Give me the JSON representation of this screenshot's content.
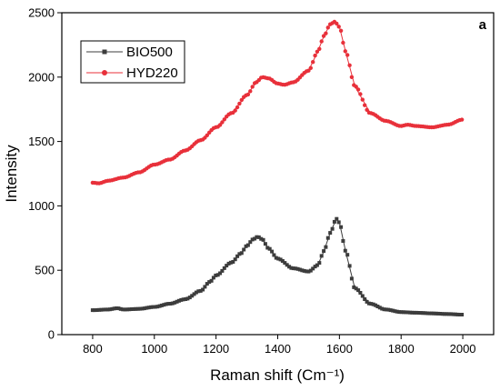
{
  "chart_data": {
    "type": "line",
    "panel_label": "a",
    "xlabel": "Raman shift (Cm⁻¹)",
    "ylabel": "Intensity",
    "xlim": [
      700,
      2100
    ],
    "ylim": [
      0,
      2500
    ],
    "xticks": [
      800,
      1000,
      1200,
      1400,
      1600,
      1800,
      2000
    ],
    "yticks": [
      0,
      500,
      1000,
      1500,
      2000,
      2500
    ],
    "legend_position": "top-left",
    "grid": false,
    "series": [
      {
        "name": "BIO500",
        "color": "#3c3c3c",
        "marker": "square",
        "x": [
          800,
          850,
          880,
          900,
          950,
          1000,
          1050,
          1100,
          1150,
          1180,
          1200,
          1250,
          1280,
          1300,
          1320,
          1335,
          1350,
          1370,
          1400,
          1450,
          1500,
          1530,
          1550,
          1570,
          1590,
          1600,
          1620,
          1650,
          1700,
          1750,
          1800,
          1850,
          1900,
          1950,
          2000
        ],
        "y": [
          190,
          195,
          205,
          195,
          200,
          215,
          240,
          275,
          340,
          410,
          460,
          560,
          630,
          690,
          740,
          760,
          740,
          670,
          590,
          515,
          490,
          540,
          650,
          790,
          900,
          870,
          650,
          360,
          240,
          195,
          175,
          170,
          165,
          160,
          155
        ]
      },
      {
        "name": "HYD220",
        "color": "#e8303a",
        "marker": "circle",
        "x": [
          800,
          820,
          850,
          900,
          950,
          1000,
          1050,
          1100,
          1150,
          1200,
          1250,
          1300,
          1330,
          1350,
          1370,
          1400,
          1420,
          1450,
          1500,
          1530,
          1550,
          1570,
          1585,
          1600,
          1620,
          1650,
          1700,
          1750,
          1800,
          1820,
          1850,
          1900,
          1950,
          2000
        ],
        "y": [
          1180,
          1175,
          1195,
          1220,
          1260,
          1320,
          1360,
          1430,
          1510,
          1610,
          1720,
          1860,
          1960,
          2000,
          1990,
          1950,
          1940,
          1960,
          2050,
          2200,
          2320,
          2410,
          2430,
          2390,
          2200,
          1930,
          1720,
          1660,
          1620,
          1630,
          1620,
          1610,
          1630,
          1670
        ]
      }
    ]
  }
}
